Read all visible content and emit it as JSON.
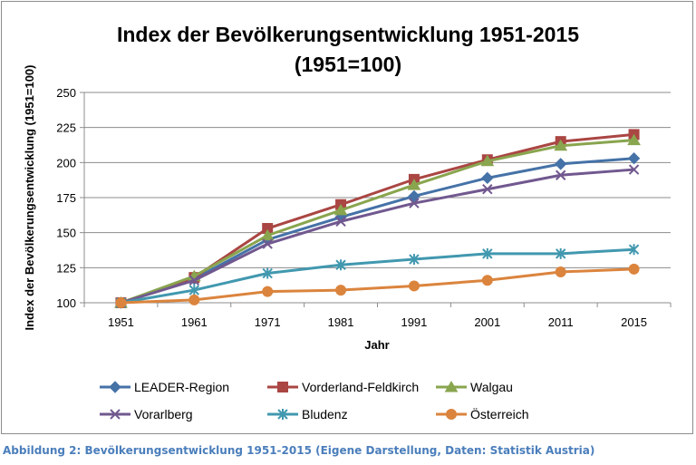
{
  "chart_data": {
    "type": "line",
    "title_line1": "Index der Bevölkerungsentwicklung 1951-2015",
    "title_line2": "(1951=100)",
    "xlabel": "Jahr",
    "ylabel": "Index der Bevölkerungsentwicklung (1951=100)",
    "ylim": [
      100,
      250
    ],
    "yticks": [
      100,
      125,
      150,
      175,
      200,
      225,
      250
    ],
    "categories": [
      "1951",
      "1961",
      "1971",
      "1981",
      "1991",
      "2001",
      "2011",
      "2015"
    ],
    "grid": "horizontal",
    "legend_position": "bottom",
    "series": [
      {
        "name": "LEADER-Region",
        "color": "#4572a7",
        "marker": "diamond",
        "values": [
          100,
          117,
          145,
          161,
          176,
          189,
          199,
          203
        ]
      },
      {
        "name": "Vorderland-Feldkirch",
        "color": "#aa4643",
        "marker": "square",
        "values": [
          100,
          118,
          153,
          170,
          188,
          202,
          215,
          220
        ]
      },
      {
        "name": "Walgau",
        "color": "#89a54e",
        "marker": "triangle",
        "values": [
          100,
          119,
          148,
          166,
          184,
          201,
          212,
          216
        ]
      },
      {
        "name": "Vorarlberg",
        "color": "#71588f",
        "marker": "x",
        "values": [
          100,
          116,
          142,
          158,
          171,
          181,
          191,
          195
        ]
      },
      {
        "name": "Bludenz",
        "color": "#4198af",
        "marker": "star",
        "values": [
          100,
          109,
          121,
          127,
          131,
          135,
          135,
          138
        ]
      },
      {
        "name": "Österreich",
        "color": "#db843d",
        "marker": "circle",
        "values": [
          100,
          102,
          108,
          109,
          112,
          116,
          122,
          124
        ]
      }
    ]
  },
  "caption": "Abbildung 2: Bevölkerungsentwicklung 1951-2015 (Eigene Darstellung, Daten: Statistik Austria)"
}
